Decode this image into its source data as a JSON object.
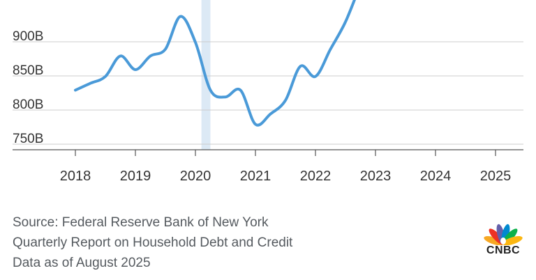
{
  "chart_data": {
    "type": "line",
    "title": "",
    "xlabel": "",
    "ylabel": "",
    "yunit": "B",
    "y_ticks": [
      750,
      800,
      850,
      900
    ],
    "y_tick_labels": [
      "750B",
      "800B",
      "850B",
      "900B"
    ],
    "x_tick_labels": [
      "2018",
      "2019",
      "2020",
      "2021",
      "2022",
      "2023",
      "2024",
      "2025"
    ],
    "xlim": [
      2018,
      2025.4
    ],
    "ylim": [
      735,
      950
    ],
    "grid": true,
    "shaded_period": [
      2020.1,
      2020.25
    ],
    "series": [
      {
        "x": [
          2018.0,
          2018.25,
          2018.5,
          2018.75,
          2019.0,
          2019.25,
          2019.5,
          2019.75,
          2020.0,
          2020.25,
          2020.5,
          2020.75,
          2021.0,
          2021.25,
          2021.5,
          2021.75,
          2022.0,
          2022.25,
          2022.5,
          2022.75
        ],
        "values": [
          820,
          830,
          840,
          870,
          850,
          870,
          880,
          928,
          890,
          820,
          810,
          820,
          770,
          785,
          805,
          855,
          840,
          880,
          920,
          975
        ],
        "color": "#4a9ad8"
      }
    ]
  },
  "source_lines": [
    "Source: Federal Reserve Bank of New York",
    "Quarterly Report on Household Debt and Credit",
    "Data as of August 2025"
  ],
  "logo": {
    "text": "CNBC",
    "icon": "peacock-icon"
  },
  "colors": {
    "line": "#4a9ad8",
    "shade": "#dce9f5",
    "grid": "#cccccc",
    "axis": "#555555"
  }
}
